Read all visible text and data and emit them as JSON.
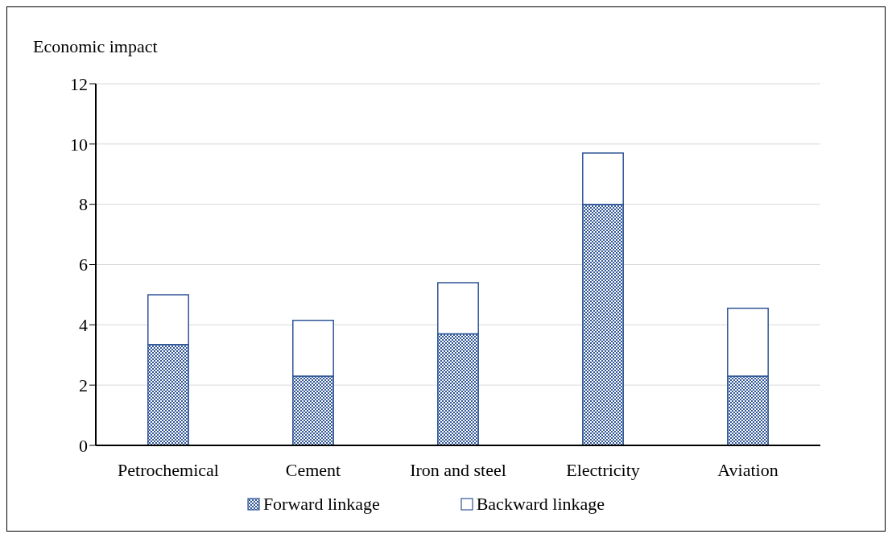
{
  "chart_data": {
    "type": "bar",
    "stacked": true,
    "ylabel": "Economic impact",
    "categories": [
      "Petrochemical",
      "Cement",
      "Iron and steel",
      "Electricity",
      "Aviation"
    ],
    "series": [
      {
        "name": "Forward linkage",
        "color": "#2f5597",
        "values": [
          3.35,
          2.3,
          3.7,
          8.0,
          2.3
        ]
      },
      {
        "name": "Backward linkage",
        "color": "#ffffff",
        "values": [
          1.65,
          1.85,
          1.7,
          1.7,
          2.25
        ]
      }
    ],
    "ylim": [
      0,
      12
    ],
    "yticks": [
      0,
      2,
      4,
      6,
      8,
      10,
      12
    ],
    "grid": "y",
    "legend": "bottom"
  }
}
